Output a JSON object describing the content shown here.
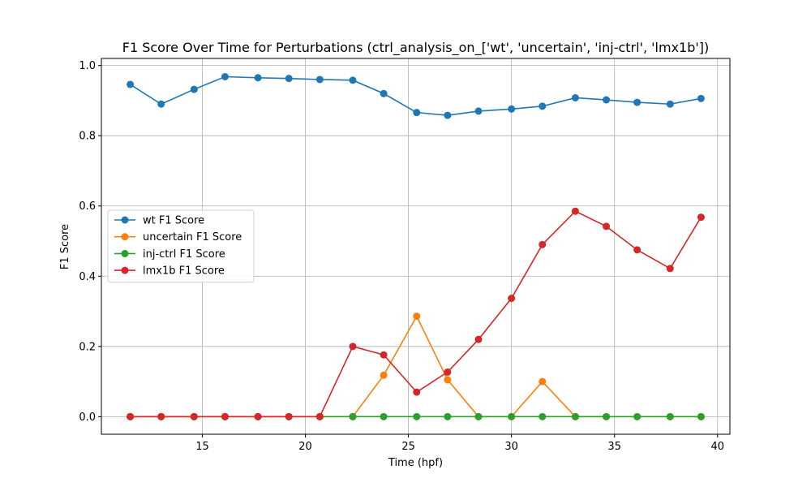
{
  "chart_data": {
    "type": "line",
    "title": "F1 Score Over Time for Perturbations (ctrl_analysis_on_['wt', 'uncertain', 'inj-ctrl', 'lmx1b'])",
    "xlabel": "Time (hpf)",
    "ylabel": "F1 Score",
    "xlim": [
      10.1,
      40.6
    ],
    "ylim": [
      -0.05,
      1.02
    ],
    "xticks": [
      15,
      20,
      25,
      30,
      35,
      40
    ],
    "yticks": [
      0.0,
      0.2,
      0.4,
      0.6,
      0.8,
      1.0
    ],
    "grid": true,
    "legend_position": "center-left",
    "x": [
      11.5,
      13.0,
      14.6,
      16.1,
      17.7,
      19.2,
      20.7,
      22.3,
      23.8,
      25.4,
      26.9,
      28.4,
      30.0,
      31.5,
      33.1,
      34.6,
      36.1,
      37.7,
      39.2
    ],
    "series": [
      {
        "name": "wt F1 Score",
        "color": "#1f77b4",
        "values": [
          0.946,
          0.89,
          0.932,
          0.968,
          0.965,
          0.963,
          0.96,
          0.958,
          0.92,
          0.866,
          0.858,
          0.87,
          0.876,
          0.884,
          0.908,
          0.902,
          0.895,
          0.89,
          0.906
        ]
      },
      {
        "name": "uncertain F1 Score",
        "color": "#ff7f0e",
        "values": [
          0.0,
          0.0,
          0.0,
          0.0,
          0.0,
          0.0,
          0.0,
          0.0,
          0.118,
          0.286,
          0.105,
          0.0,
          0.0,
          0.1,
          0.0,
          0.0,
          0.0,
          0.0,
          0.0
        ]
      },
      {
        "name": "inj-ctrl F1 Score",
        "color": "#2ca02c",
        "values": [
          0.0,
          0.0,
          0.0,
          0.0,
          0.0,
          0.0,
          0.0,
          0.0,
          0.0,
          0.0,
          0.0,
          0.0,
          0.0,
          0.0,
          0.0,
          0.0,
          0.0,
          0.0,
          0.0
        ]
      },
      {
        "name": "lmx1b F1 Score",
        "color": "#d62728",
        "values": [
          0.0,
          0.0,
          0.0,
          0.0,
          0.0,
          0.0,
          0.0,
          0.2,
          0.176,
          0.07,
          0.127,
          0.22,
          0.337,
          0.49,
          0.585,
          0.542,
          0.475,
          0.422,
          0.568
        ]
      }
    ]
  }
}
